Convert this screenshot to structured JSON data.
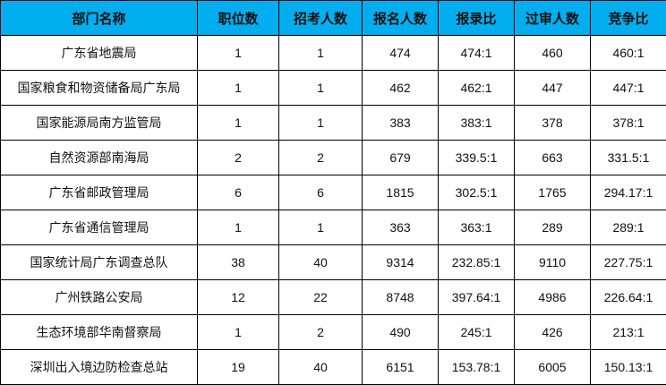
{
  "colors": {
    "header_bg": "#00AEEF",
    "border": "#000000"
  },
  "headers": [
    "部门名称",
    "职位数",
    "招考人数",
    "报名人数",
    "报录比",
    "过审人数",
    "竞争比"
  ],
  "rows": [
    [
      "广东省地震局",
      "1",
      "1",
      "474",
      "474:1",
      "460",
      "460:1"
    ],
    [
      "国家粮食和物资储备局广东局",
      "1",
      "1",
      "462",
      "462:1",
      "447",
      "447:1"
    ],
    [
      "国家能源局南方监管局",
      "1",
      "1",
      "383",
      "383:1",
      "378",
      "378:1"
    ],
    [
      "自然资源部南海局",
      "2",
      "2",
      "679",
      "339.5:1",
      "663",
      "331.5:1"
    ],
    [
      "广东省邮政管理局",
      "6",
      "6",
      "1815",
      "302.5:1",
      "1765",
      "294.17:1"
    ],
    [
      "广东省通信管理局",
      "1",
      "1",
      "363",
      "363:1",
      "289",
      "289:1"
    ],
    [
      "国家统计局广东调查总队",
      "38",
      "40",
      "9314",
      "232.85:1",
      "9110",
      "227.75:1"
    ],
    [
      "广州铁路公安局",
      "12",
      "22",
      "8748",
      "397.64:1",
      "4986",
      "226.64:1"
    ],
    [
      "生态环境部华南督察局",
      "1",
      "2",
      "490",
      "245:1",
      "426",
      "213:1"
    ],
    [
      "深圳出入境边防检查总站",
      "19",
      "40",
      "6151",
      "153.78:1",
      "6005",
      "150.13:1"
    ]
  ]
}
